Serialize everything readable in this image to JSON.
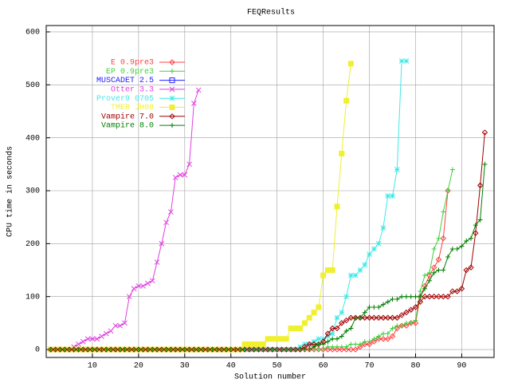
{
  "chart_data": {
    "type": "line",
    "title": "FEQResults",
    "x_label": "Solution number",
    "y_label": "CPU time in seconds",
    "xlim": [
      0,
      97
    ],
    "ylim": [
      -15,
      612
    ],
    "xticks": [
      10,
      20,
      30,
      40,
      50,
      60,
      70,
      80,
      90
    ],
    "yticks": [
      0,
      100,
      200,
      300,
      400,
      500,
      600
    ],
    "grid": true,
    "legend": "upper left",
    "series": [
      {
        "name": "E 0.9pre3",
        "color": "#ff4040",
        "marker": "diamond",
        "x": [
          1,
          2,
          3,
          4,
          5,
          6,
          7,
          8,
          9,
          10,
          11,
          12,
          13,
          14,
          15,
          16,
          17,
          18,
          19,
          20,
          21,
          22,
          23,
          24,
          25,
          26,
          27,
          28,
          29,
          30,
          31,
          32,
          33,
          34,
          35,
          36,
          37,
          38,
          39,
          40,
          41,
          42,
          43,
          44,
          45,
          46,
          47,
          48,
          49,
          50,
          51,
          52,
          53,
          54,
          55,
          56,
          57,
          58,
          59,
          60,
          61,
          62,
          63,
          64,
          65,
          66,
          67,
          68,
          69,
          70,
          71,
          72,
          73,
          74,
          75,
          76,
          77,
          78,
          79,
          80,
          81,
          82,
          83,
          84,
          85,
          86,
          87
        ],
        "values": [
          0,
          0,
          0,
          0,
          0,
          0,
          0,
          0,
          0,
          0,
          0,
          0,
          0,
          0,
          0,
          0,
          0,
          0,
          0,
          0,
          0,
          0,
          0,
          0,
          0,
          0,
          0,
          0,
          0,
          0,
          0,
          0,
          0,
          0,
          0,
          0,
          0,
          0,
          0,
          0,
          0,
          0,
          0,
          0,
          0,
          0,
          0,
          0,
          0,
          0,
          0,
          0,
          0,
          0,
          0,
          0,
          0,
          0,
          0,
          0,
          0,
          0,
          0,
          0,
          0,
          0,
          0,
          5,
          10,
          10,
          15,
          20,
          20,
          20,
          25,
          40,
          45,
          45,
          50,
          50,
          100,
          120,
          140,
          155,
          170,
          210,
          300
        ]
      },
      {
        "name": "EP 0.9pre3",
        "color": "#40d040",
        "marker": "plus",
        "x": [
          1,
          2,
          3,
          4,
          5,
          6,
          7,
          8,
          9,
          10,
          11,
          12,
          13,
          14,
          15,
          16,
          17,
          18,
          19,
          20,
          21,
          22,
          23,
          24,
          25,
          26,
          27,
          28,
          29,
          30,
          31,
          32,
          33,
          34,
          35,
          36,
          37,
          38,
          39,
          40,
          41,
          42,
          43,
          44,
          45,
          46,
          47,
          48,
          49,
          50,
          51,
          52,
          53,
          54,
          55,
          56,
          57,
          58,
          59,
          60,
          61,
          62,
          63,
          64,
          65,
          66,
          67,
          68,
          69,
          70,
          71,
          72,
          73,
          74,
          75,
          76,
          77,
          78,
          79,
          80,
          81,
          82,
          83,
          84,
          85,
          86,
          87,
          88
        ],
        "values": [
          0,
          0,
          0,
          0,
          0,
          0,
          0,
          0,
          0,
          0,
          0,
          0,
          0,
          0,
          0,
          0,
          0,
          0,
          0,
          0,
          0,
          0,
          0,
          0,
          0,
          0,
          0,
          0,
          0,
          0,
          0,
          0,
          0,
          0,
          0,
          0,
          0,
          0,
          0,
          0,
          0,
          0,
          0,
          0,
          0,
          0,
          0,
          0,
          0,
          0,
          0,
          0,
          0,
          0,
          0,
          0,
          0,
          0,
          0,
          0,
          5,
          5,
          5,
          5,
          5,
          10,
          10,
          10,
          15,
          15,
          20,
          25,
          30,
          30,
          40,
          45,
          45,
          50,
          50,
          55,
          110,
          140,
          145,
          190,
          210,
          260,
          300,
          340
        ]
      },
      {
        "name": "MUSCADET 2.5",
        "color": "#2020ff",
        "marker": "square",
        "x": [
          1,
          2,
          3,
          4,
          5,
          6,
          7,
          8,
          9,
          10,
          11,
          12,
          13,
          14,
          15,
          16,
          17,
          18,
          19,
          20,
          21,
          22,
          23,
          24,
          25,
          26,
          27,
          28,
          29,
          30
        ],
        "values": [
          0,
          0,
          0,
          0,
          0,
          0,
          0,
          0,
          0,
          0,
          0,
          0,
          0,
          0,
          0,
          0,
          0,
          0,
          0,
          0,
          0,
          0,
          0,
          0,
          0,
          0,
          0,
          0,
          0,
          0
        ]
      },
      {
        "name": "Otter 3.3",
        "color": "#e040e0",
        "marker": "cross",
        "x": [
          1,
          2,
          3,
          4,
          5,
          6,
          7,
          8,
          9,
          10,
          11,
          12,
          13,
          14,
          15,
          16,
          17,
          18,
          19,
          20,
          21,
          22,
          23,
          24,
          25,
          26,
          27,
          28,
          29,
          30,
          31,
          32,
          33
        ],
        "values": [
          0,
          0,
          0,
          0,
          0,
          5,
          10,
          15,
          20,
          20,
          20,
          25,
          30,
          35,
          45,
          45,
          50,
          100,
          115,
          120,
          120,
          125,
          130,
          165,
          200,
          240,
          260,
          325,
          330,
          330,
          350,
          465,
          490
        ]
      },
      {
        "name": "Prover9 0705",
        "color": "#40e8e8",
        "marker": "star",
        "x": [
          1,
          2,
          3,
          4,
          5,
          6,
          7,
          8,
          9,
          10,
          11,
          12,
          13,
          14,
          15,
          16,
          17,
          18,
          19,
          20,
          21,
          22,
          23,
          24,
          25,
          26,
          27,
          28,
          29,
          30,
          31,
          32,
          33,
          34,
          35,
          36,
          37,
          38,
          39,
          40,
          41,
          42,
          43,
          44,
          45,
          46,
          47,
          48,
          49,
          50,
          51,
          52,
          53,
          54,
          55,
          56,
          57,
          58,
          59,
          60,
          61,
          62,
          63,
          64,
          65,
          66,
          67,
          68,
          69,
          70,
          71,
          72,
          73,
          74,
          75,
          76,
          77,
          78
        ],
        "values": [
          0,
          0,
          0,
          0,
          0,
          0,
          0,
          0,
          0,
          0,
          0,
          0,
          0,
          0,
          0,
          0,
          0,
          0,
          0,
          0,
          0,
          0,
          0,
          0,
          0,
          0,
          0,
          0,
          0,
          0,
          0,
          0,
          0,
          0,
          0,
          0,
          0,
          0,
          0,
          0,
          0,
          0,
          0,
          0,
          0,
          0,
          0,
          0,
          0,
          0,
          0,
          0,
          0,
          0,
          5,
          10,
          10,
          15,
          20,
          20,
          25,
          30,
          60,
          70,
          100,
          140,
          140,
          150,
          160,
          180,
          190,
          200,
          230,
          290,
          290,
          340,
          545,
          545
        ]
      },
      {
        "name": "TMER JH08",
        "color": "#f0f030",
        "marker": "box",
        "x": [
          1,
          2,
          3,
          4,
          5,
          6,
          7,
          8,
          9,
          10,
          11,
          12,
          13,
          14,
          15,
          16,
          17,
          18,
          19,
          20,
          21,
          22,
          23,
          24,
          25,
          26,
          27,
          28,
          29,
          30,
          31,
          32,
          33,
          34,
          35,
          36,
          37,
          38,
          39,
          40,
          41,
          42,
          43,
          44,
          45,
          46,
          47,
          48,
          49,
          50,
          51,
          52,
          53,
          54,
          55,
          56,
          57,
          58,
          59,
          60,
          61,
          62,
          63,
          64,
          65,
          66
        ],
        "values": [
          0,
          0,
          0,
          0,
          0,
          0,
          0,
          0,
          0,
          0,
          0,
          0,
          0,
          0,
          0,
          0,
          0,
          0,
          0,
          0,
          0,
          0,
          0,
          0,
          0,
          0,
          0,
          0,
          0,
          0,
          0,
          0,
          0,
          0,
          0,
          0,
          0,
          0,
          0,
          0,
          0,
          0,
          10,
          10,
          10,
          10,
          10,
          20,
          20,
          20,
          20,
          20,
          40,
          40,
          40,
          50,
          60,
          70,
          80,
          140,
          150,
          150,
          270,
          370,
          470,
          540
        ]
      },
      {
        "name": "Vampire 7.0",
        "color": "#a00000",
        "marker": "diamond",
        "x": [
          1,
          2,
          3,
          4,
          5,
          6,
          7,
          8,
          9,
          10,
          11,
          12,
          13,
          14,
          15,
          16,
          17,
          18,
          19,
          20,
          21,
          22,
          23,
          24,
          25,
          26,
          27,
          28,
          29,
          30,
          31,
          32,
          33,
          34,
          35,
          36,
          37,
          38,
          39,
          40,
          41,
          42,
          43,
          44,
          45,
          46,
          47,
          48,
          49,
          50,
          51,
          52,
          53,
          54,
          55,
          56,
          57,
          58,
          59,
          60,
          61,
          62,
          63,
          64,
          65,
          66,
          67,
          68,
          69,
          70,
          71,
          72,
          73,
          74,
          75,
          76,
          77,
          78,
          79,
          80,
          81,
          82,
          83,
          84,
          85,
          86,
          87,
          88,
          89,
          90,
          91,
          92,
          93,
          94,
          95
        ],
        "values": [
          0,
          0,
          0,
          0,
          0,
          0,
          0,
          0,
          0,
          0,
          0,
          0,
          0,
          0,
          0,
          0,
          0,
          0,
          0,
          0,
          0,
          0,
          0,
          0,
          0,
          0,
          0,
          0,
          0,
          0,
          0,
          0,
          0,
          0,
          0,
          0,
          0,
          0,
          0,
          0,
          0,
          0,
          0,
          0,
          0,
          0,
          0,
          0,
          0,
          0,
          0,
          0,
          0,
          0,
          0,
          5,
          10,
          10,
          10,
          15,
          30,
          40,
          40,
          50,
          55,
          60,
          60,
          60,
          60,
          60,
          60,
          60,
          60,
          60,
          60,
          60,
          65,
          70,
          75,
          80,
          90,
          100,
          100,
          100,
          100,
          100,
          100,
          110,
          110,
          115,
          150,
          155,
          220,
          310,
          410
        ]
      },
      {
        "name": "Vampire 8.0",
        "color": "#008000",
        "marker": "plus",
        "x": [
          1,
          2,
          3,
          4,
          5,
          6,
          7,
          8,
          9,
          10,
          11,
          12,
          13,
          14,
          15,
          16,
          17,
          18,
          19,
          20,
          21,
          22,
          23,
          24,
          25,
          26,
          27,
          28,
          29,
          30,
          31,
          32,
          33,
          34,
          35,
          36,
          37,
          38,
          39,
          40,
          41,
          42,
          43,
          44,
          45,
          46,
          47,
          48,
          49,
          50,
          51,
          52,
          53,
          54,
          55,
          56,
          57,
          58,
          59,
          60,
          61,
          62,
          63,
          64,
          65,
          66,
          67,
          68,
          69,
          70,
          71,
          72,
          73,
          74,
          75,
          76,
          77,
          78,
          79,
          80,
          81,
          82,
          83,
          84,
          85,
          86,
          87,
          88,
          89,
          90,
          91,
          92,
          93,
          94,
          95
        ],
        "values": [
          0,
          0,
          0,
          0,
          0,
          0,
          0,
          0,
          0,
          0,
          0,
          0,
          0,
          0,
          0,
          0,
          0,
          0,
          0,
          0,
          0,
          0,
          0,
          0,
          0,
          0,
          0,
          0,
          0,
          0,
          0,
          0,
          0,
          0,
          0,
          0,
          0,
          0,
          0,
          0,
          0,
          0,
          0,
          0,
          0,
          0,
          0,
          0,
          0,
          0,
          0,
          0,
          0,
          0,
          0,
          0,
          0,
          5,
          10,
          10,
          15,
          20,
          20,
          25,
          35,
          40,
          60,
          60,
          70,
          80,
          80,
          80,
          85,
          90,
          95,
          95,
          100,
          100,
          100,
          100,
          100,
          115,
          130,
          145,
          150,
          150,
          175,
          190,
          190,
          195,
          205,
          210,
          235,
          245,
          350
        ]
      }
    ]
  }
}
